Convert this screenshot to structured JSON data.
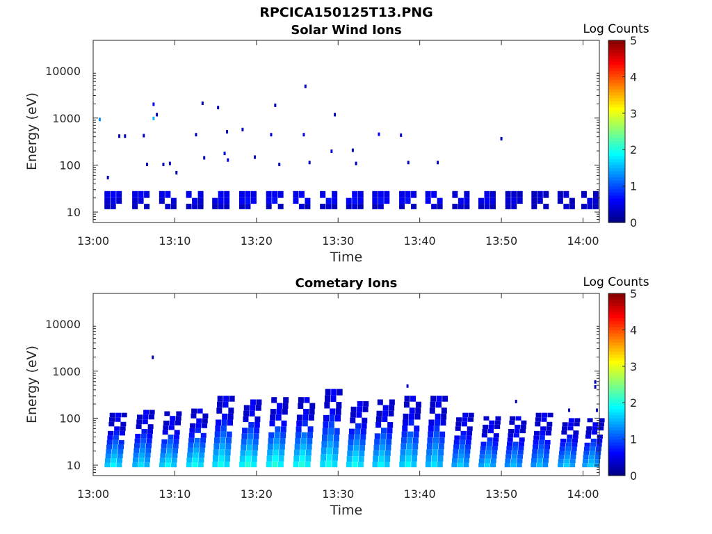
{
  "figure": {
    "title": "RPCICA150125T13.PNG"
  },
  "chart_data": [
    {
      "type": "heatmap",
      "title": "Solar Wind Ions",
      "xlabel": "Time",
      "ylabel": "Energy (eV)",
      "x_ticks": [
        "13:00",
        "13:10",
        "13:20",
        "13:30",
        "13:40",
        "13:50",
        "14:00"
      ],
      "y_ticks": [
        "10",
        "100",
        "1000",
        "10000"
      ],
      "y_scale": "log",
      "xlim": [
        "13:00",
        "14:02"
      ],
      "ylim": [
        6,
        45000
      ],
      "colorbar": {
        "label": "Log Counts",
        "ticks": [
          "0",
          "1",
          "2",
          "3",
          "4",
          "5"
        ],
        "range": [
          0,
          5
        ],
        "colormap": "jet"
      },
      "sweep_blocks": [
        {
          "t": 2.4,
          "levels": [
            0.5,
            0.4,
            0.3
          ]
        },
        {
          "t": 5.8,
          "levels": [
            0.5,
            0.4,
            0.3
          ]
        },
        {
          "t": 9.1,
          "levels": [
            0.5,
            0.4,
            0.3
          ]
        },
        {
          "t": 12.4,
          "levels": [
            0.5,
            0.4,
            0.3
          ]
        },
        {
          "t": 15.6,
          "levels": [
            0.5,
            0.5,
            0.3
          ]
        },
        {
          "t": 18.9,
          "levels": [
            0.5,
            0.6,
            0.3
          ]
        },
        {
          "t": 22.2,
          "levels": [
            0.5,
            0.6,
            0.3
          ]
        },
        {
          "t": 25.5,
          "levels": [
            0.5,
            0.6,
            0.3
          ]
        },
        {
          "t": 28.8,
          "levels": [
            0.5,
            0.6,
            0.3
          ]
        },
        {
          "t": 32.0,
          "levels": [
            0.5,
            0.6,
            0.3
          ]
        },
        {
          "t": 35.2,
          "levels": [
            0.5,
            0.6,
            0.3
          ]
        },
        {
          "t": 38.5,
          "levels": [
            0.5,
            0.6,
            0.3
          ]
        },
        {
          "t": 41.7,
          "levels": [
            0.5,
            0.6,
            0.3
          ]
        },
        {
          "t": 45.0,
          "levels": [
            0.4,
            0.5,
            0.3
          ]
        },
        {
          "t": 48.2,
          "levels": [
            0.4,
            0.5,
            0.3
          ]
        },
        {
          "t": 51.5,
          "levels": [
            0.3,
            0.4,
            0.3
          ]
        },
        {
          "t": 54.7,
          "levels": [
            0.3,
            0.3,
            0.3
          ]
        },
        {
          "t": 57.9,
          "levels": [
            0.3,
            0.3,
            0.3
          ]
        },
        {
          "t": 60.8,
          "levels": [
            0.3,
            0.4,
            0.3
          ]
        }
      ],
      "scatter_points": [
        {
          "t": 0.8,
          "e": 950,
          "v": 1.3
        },
        {
          "t": 1.8,
          "e": 55,
          "v": 0.3
        },
        {
          "t": 3.2,
          "e": 420,
          "v": 0.3
        },
        {
          "t": 3.9,
          "e": 420,
          "v": 0.3
        },
        {
          "t": 6.2,
          "e": 430,
          "v": 0.3
        },
        {
          "t": 6.6,
          "e": 105,
          "v": 0.3
        },
        {
          "t": 7.4,
          "e": 2000,
          "v": 0.6
        },
        {
          "t": 7.4,
          "e": 1000,
          "v": 1.5
        },
        {
          "t": 7.8,
          "e": 1200,
          "v": 0.3
        },
        {
          "t": 8.6,
          "e": 105,
          "v": 0.3
        },
        {
          "t": 9.4,
          "e": 110,
          "v": 0.3
        },
        {
          "t": 10.2,
          "e": 70,
          "v": 0.3
        },
        {
          "t": 12.6,
          "e": 450,
          "v": 0.3
        },
        {
          "t": 13.4,
          "e": 2100,
          "v": 0.3
        },
        {
          "t": 13.6,
          "e": 145,
          "v": 0.3
        },
        {
          "t": 15.3,
          "e": 1700,
          "v": 0.3
        },
        {
          "t": 16.1,
          "e": 180,
          "v": 0.5
        },
        {
          "t": 16.5,
          "e": 130,
          "v": 0.5
        },
        {
          "t": 16.4,
          "e": 520,
          "v": 0.3
        },
        {
          "t": 18.3,
          "e": 580,
          "v": 0.3
        },
        {
          "t": 19.8,
          "e": 150,
          "v": 0.3
        },
        {
          "t": 21.8,
          "e": 450,
          "v": 0.4
        },
        {
          "t": 22.3,
          "e": 1900,
          "v": 0.3
        },
        {
          "t": 22.8,
          "e": 105,
          "v": 0.3
        },
        {
          "t": 26.0,
          "e": 4800,
          "v": 0.3
        },
        {
          "t": 25.8,
          "e": 450,
          "v": 0.4
        },
        {
          "t": 26.5,
          "e": 115,
          "v": 0.3
        },
        {
          "t": 29.2,
          "e": 200,
          "v": 0.4
        },
        {
          "t": 29.6,
          "e": 1200,
          "v": 0.3
        },
        {
          "t": 31.8,
          "e": 210,
          "v": 0.3
        },
        {
          "t": 32.2,
          "e": 110,
          "v": 0.3
        },
        {
          "t": 35.0,
          "e": 460,
          "v": 0.6
        },
        {
          "t": 37.7,
          "e": 440,
          "v": 0.4
        },
        {
          "t": 38.6,
          "e": 115,
          "v": 0.3
        },
        {
          "t": 42.2,
          "e": 115,
          "v": 0.3
        },
        {
          "t": 50.0,
          "e": 370,
          "v": 0.3
        }
      ]
    },
    {
      "type": "heatmap",
      "title": "Cometary Ions",
      "xlabel": "Time",
      "ylabel": "Energy (eV)",
      "x_ticks": [
        "13:00",
        "13:10",
        "13:20",
        "13:30",
        "13:40",
        "13:50",
        "14:00"
      ],
      "y_ticks": [
        "10",
        "100",
        "1000",
        "10000"
      ],
      "y_scale": "log",
      "xlim": [
        "13:00",
        "14:02"
      ],
      "ylim": [
        6,
        45000
      ],
      "colorbar": {
        "label": "Log Counts",
        "ticks": [
          "0",
          "1",
          "2",
          "3",
          "4",
          "5"
        ],
        "range": [
          0,
          5
        ],
        "colormap": "jet"
      },
      "sweep_blocks": [
        {
          "t": 2.5,
          "peak_energy": 130,
          "base_level": 1.6
        },
        {
          "t": 5.9,
          "peak_energy": 150,
          "base_level": 1.5
        },
        {
          "t": 9.2,
          "peak_energy": 140,
          "base_level": 1.6
        },
        {
          "t": 12.5,
          "peak_energy": 160,
          "base_level": 1.7
        },
        {
          "t": 15.7,
          "peak_energy": 300,
          "base_level": 1.7
        },
        {
          "t": 19.0,
          "peak_energy": 250,
          "base_level": 1.8
        },
        {
          "t": 22.3,
          "peak_energy": 280,
          "base_level": 1.8
        },
        {
          "t": 25.6,
          "peak_energy": 280,
          "base_level": 1.8
        },
        {
          "t": 28.9,
          "peak_energy": 420,
          "base_level": 1.7
        },
        {
          "t": 32.1,
          "peak_energy": 230,
          "base_level": 1.7
        },
        {
          "t": 35.3,
          "peak_energy": 250,
          "base_level": 1.6
        },
        {
          "t": 38.6,
          "peak_energy": 300,
          "base_level": 1.6
        },
        {
          "t": 41.8,
          "peak_energy": 300,
          "base_level": 1.5
        },
        {
          "t": 45.0,
          "peak_energy": 130,
          "base_level": 1.4
        },
        {
          "t": 48.3,
          "peak_energy": 110,
          "base_level": 1.4
        },
        {
          "t": 51.5,
          "peak_energy": 110,
          "base_level": 1.3
        },
        {
          "t": 54.7,
          "peak_energy": 130,
          "base_level": 1.3
        },
        {
          "t": 58.0,
          "peak_energy": 100,
          "base_level": 1.4
        },
        {
          "t": 61.0,
          "peak_energy": 100,
          "base_level": 1.4
        }
      ],
      "scatter_points": [
        {
          "t": 7.3,
          "e": 2000,
          "v": 0.3
        },
        {
          "t": 38.5,
          "e": 490,
          "v": 0.3
        },
        {
          "t": 51.8,
          "e": 230,
          "v": 0.3
        },
        {
          "t": 58.3,
          "e": 150,
          "v": 0.3
        },
        {
          "t": 61.5,
          "e": 600,
          "v": 0.3
        },
        {
          "t": 61.5,
          "e": 470,
          "v": 0.3
        },
        {
          "t": 61.7,
          "e": 150,
          "v": 0.3
        }
      ]
    }
  ]
}
